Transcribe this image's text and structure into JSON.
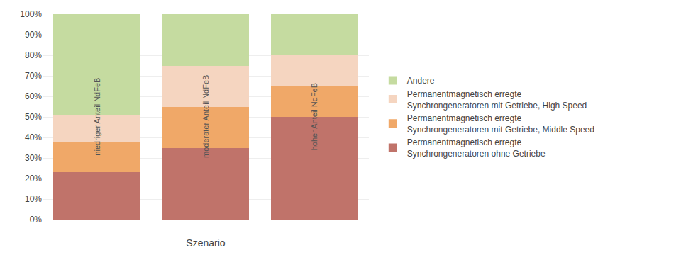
{
  "chart_data": {
    "type": "bar",
    "stacked": true,
    "categories": [
      "niedriger Anteil NdFeB",
      "moderater Anteil NdFeB",
      "hoher Anteil NdFeB"
    ],
    "series": [
      {
        "name": "Permanentmagnetisch erregte\nSynchrongeneratoren ohne Getriebe",
        "color": "#c0736a",
        "values": [
          0.23,
          0.35,
          0.5
        ]
      },
      {
        "name": "Permanentmagnetisch erregte\nSynchrongeneratoren mit Getriebe, Middle Speed",
        "color": "#f0a868",
        "values": [
          0.15,
          0.2,
          0.15
        ]
      },
      {
        "name": "Permanentmagnetisch erregte\nSynchrongeneratoren mit Getriebe, High Speed",
        "color": "#f5d5c0",
        "values": [
          0.13,
          0.2,
          0.15
        ]
      },
      {
        "name": "Andere",
        "color": "#c5dba0",
        "values": [
          0.49,
          0.25,
          0.2
        ]
      }
    ],
    "xlabel": "Szenario",
    "ylim": [
      0,
      1.0
    ],
    "yticks": [
      {
        "value": 0.0,
        "label": "0%"
      },
      {
        "value": 0.1,
        "label": "10%"
      },
      {
        "value": 0.2,
        "label": "20%"
      },
      {
        "value": 0.3,
        "label": "30%"
      },
      {
        "value": 0.4,
        "label": "40%"
      },
      {
        "value": 0.5,
        "label": "50%"
      },
      {
        "value": 0.6,
        "label": "60%"
      },
      {
        "value": 0.7,
        "label": "70%"
      },
      {
        "value": 0.8,
        "label": "80%"
      },
      {
        "value": 0.9,
        "label": "90%"
      },
      {
        "value": 1.0,
        "label": "100%"
      }
    ],
    "grid": true,
    "legend": "right",
    "tick_labels": "y"
  }
}
